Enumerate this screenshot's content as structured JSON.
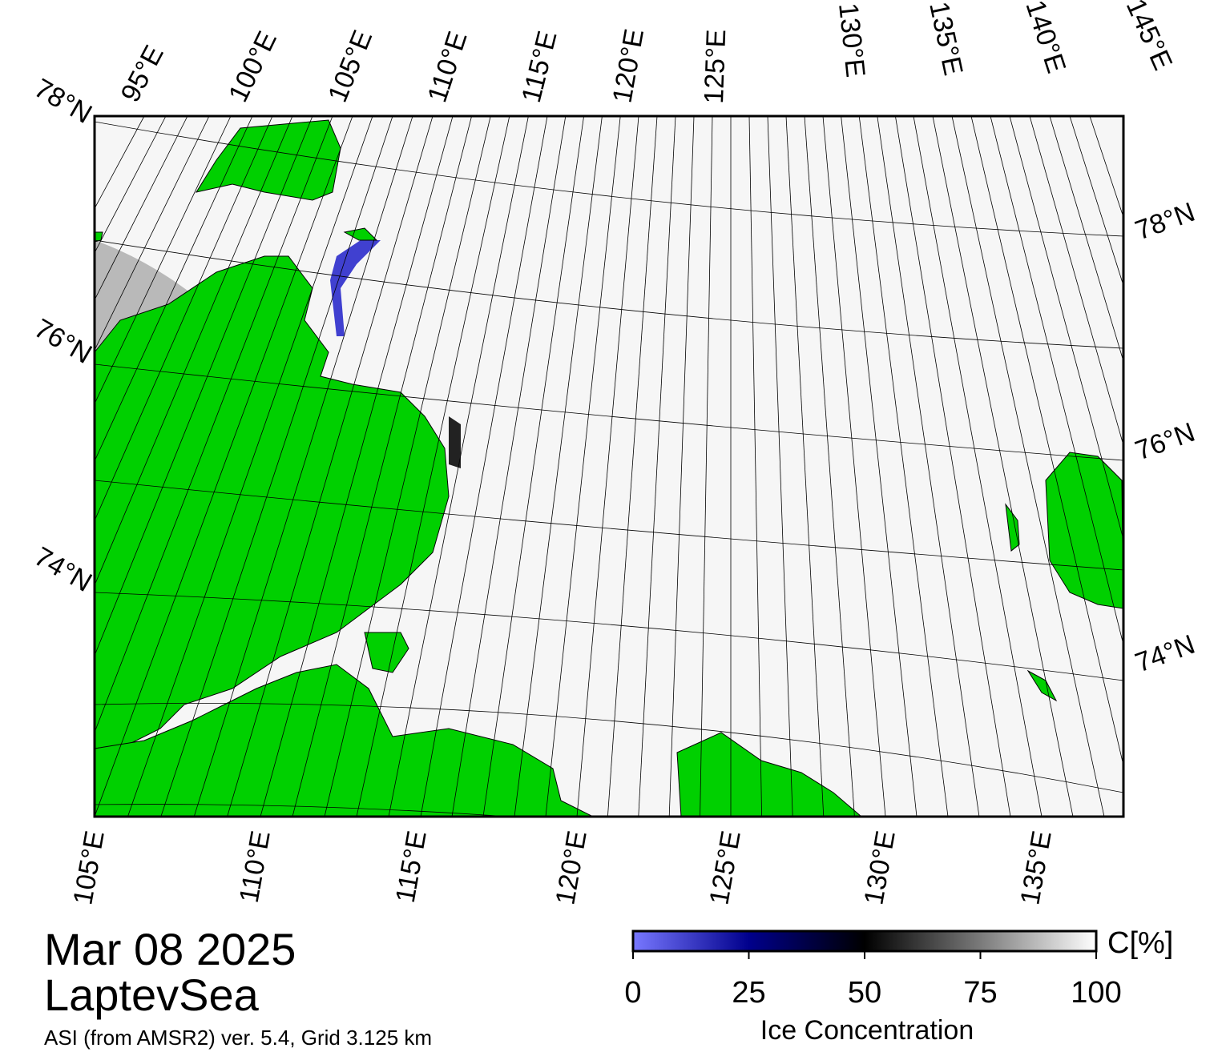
{
  "title": {
    "date": "Mar 08 2025",
    "region": "LaptevSea",
    "source": "ASI (from AMSR2) ver. 5.4,  Grid 3.125 km"
  },
  "labels": {
    "top": [
      "95°E",
      "100°E",
      "105°E",
      "110°E",
      "115°E",
      "120°E",
      "125°E",
      "130°E",
      "135°E",
      "140°E",
      "145°E"
    ],
    "left": [
      "78°N",
      "76°N",
      "74°N"
    ],
    "right": [
      "78°N",
      "76°N",
      "74°N"
    ],
    "bottom": [
      "105°E",
      "110°E",
      "115°E",
      "120°E",
      "125°E",
      "130°E",
      "135°E"
    ]
  },
  "colorbar": {
    "ticks": [
      0,
      25,
      50,
      75,
      100
    ],
    "range": [
      0,
      100
    ],
    "unit_label": "C[%]",
    "title": "Ice Concentration"
  }
}
